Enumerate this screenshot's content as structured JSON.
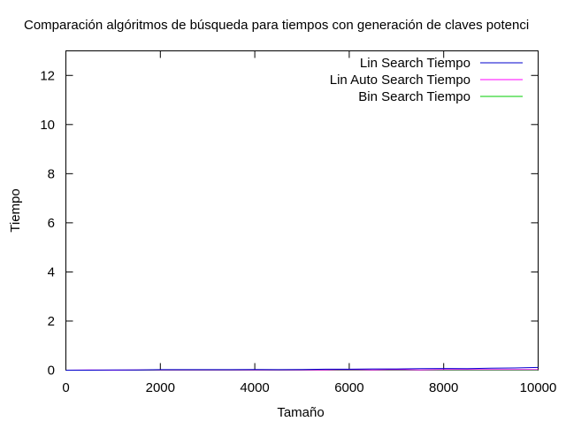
{
  "chart_data": {
    "type": "line",
    "title": "Comparación algóritmos de búsqueda para tiempos con generación de claves potenci",
    "xlabel": "Tamaño",
    "ylabel": "Tiempo",
    "xlim": [
      0,
      10000
    ],
    "ylim": [
      0,
      13
    ],
    "xticks": [
      0,
      2000,
      4000,
      6000,
      8000,
      10000
    ],
    "yticks": [
      0,
      2,
      4,
      6,
      8,
      10,
      12
    ],
    "grid": false,
    "legend_position": "top-right",
    "series": [
      {
        "name": "Lin Search Tiempo",
        "color": "#0000cc",
        "x": [
          0,
          500,
          1000,
          1500,
          2000,
          2500,
          3000,
          3500,
          4000,
          4500,
          5000,
          5500,
          6000,
          6500,
          7000,
          7500,
          8000,
          8500,
          9000,
          9500,
          10000
        ],
        "y": [
          0.0,
          0.0,
          0.01,
          0.01,
          0.02,
          0.02,
          0.02,
          0.02,
          0.03,
          0.02,
          0.03,
          0.04,
          0.04,
          0.05,
          0.05,
          0.06,
          0.07,
          0.06,
          0.08,
          0.09,
          0.11
        ]
      },
      {
        "name": "Lin Auto Search Tiempo",
        "color": "#ff00ff",
        "x": [
          0,
          500,
          1000,
          1500,
          2000,
          2500,
          3000,
          3500,
          4000,
          4500,
          5000,
          5500,
          6000,
          6500,
          7000,
          7500,
          8000,
          8500,
          9000,
          9500,
          10000
        ],
        "y": [
          0.0,
          0.01,
          0.0,
          0.01,
          0.01,
          0.01,
          0.01,
          0.01,
          0.01,
          0.01,
          0.01,
          0.01,
          0.02,
          0.01,
          0.02,
          0.01,
          0.02,
          0.02,
          0.02,
          0.02,
          0.02
        ]
      },
      {
        "name": "Bin Search Tiempo",
        "color": "#00cc00",
        "x": [
          0,
          500,
          1000,
          1500,
          2000,
          2500,
          3000,
          3500,
          4000,
          4500,
          5000,
          5500,
          6000,
          6500,
          7000,
          7500,
          8000,
          8500,
          9000,
          9500,
          10000
        ],
        "y": [
          0.0,
          0.0,
          0.0,
          0.0,
          0.0,
          0.0,
          0.0,
          0.0,
          0.0,
          0.0,
          0.0,
          0.0,
          0.0,
          0.0,
          0.0,
          0.0,
          0.0,
          0.0,
          0.0,
          0.0,
          0.0
        ]
      }
    ]
  }
}
